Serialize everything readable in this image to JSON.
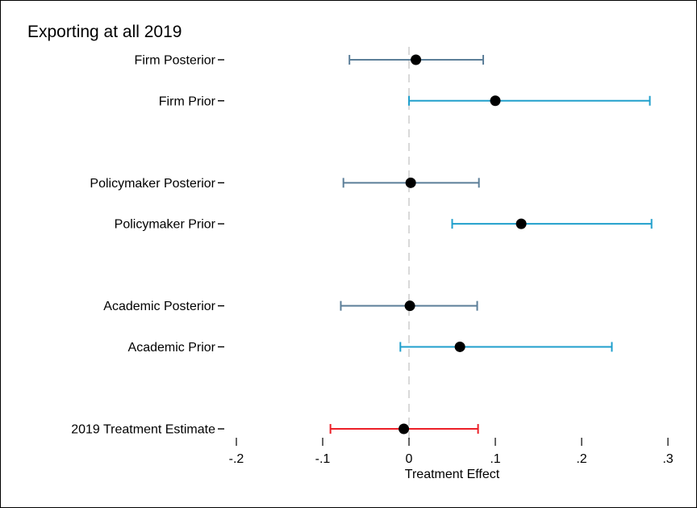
{
  "window": {
    "background": "#ffffff",
    "border_color": "#000000"
  },
  "chart_data": {
    "type": "scatter",
    "subtype": "forest-plot-with-error-bars",
    "title": "Exporting at all 2019",
    "xlabel": "Treatment Effect",
    "xlim": [
      -0.22,
      0.32
    ],
    "grid": false,
    "legend": "none",
    "zero_reference_line": {
      "x": 0,
      "style": "dashed",
      "color": "#d9d9d9"
    },
    "x_ticks": [
      {
        "value": -0.2,
        "label": "-.2"
      },
      {
        "value": -0.1,
        "label": "-.1"
      },
      {
        "value": 0,
        "label": "0"
      },
      {
        "value": 0.1,
        "label": ".1"
      },
      {
        "value": 0.2,
        "label": ".2"
      },
      {
        "value": 0.3,
        "label": ".3"
      }
    ],
    "rows": [
      {
        "label": "Firm Posterior",
        "slot": 1,
        "estimate": 0.008,
        "ci_low": -0.069,
        "ci_high": 0.086,
        "group": "posterior"
      },
      {
        "label": "Firm Prior",
        "slot": 2,
        "estimate": 0.1,
        "ci_low": 0.0,
        "ci_high": 0.279,
        "group": "prior"
      },
      {
        "label": "Policymaker Posterior",
        "slot": 4,
        "estimate": 0.002,
        "ci_low": -0.076,
        "ci_high": 0.081,
        "group": "posterior"
      },
      {
        "label": "Policymaker Prior",
        "slot": 5,
        "estimate": 0.13,
        "ci_low": 0.05,
        "ci_high": 0.281,
        "group": "prior"
      },
      {
        "label": "Academic Posterior",
        "slot": 7,
        "estimate": 0.001,
        "ci_low": -0.079,
        "ci_high": 0.079,
        "group": "posterior"
      },
      {
        "label": "Academic Prior",
        "slot": 8,
        "estimate": 0.059,
        "ci_low": -0.01,
        "ci_high": 0.235,
        "group": "prior"
      },
      {
        "label": "2019 Treatment Estimate",
        "slot": 10,
        "estimate": -0.006,
        "ci_low": -0.091,
        "ci_high": 0.08,
        "group": "treatment"
      }
    ],
    "colors": {
      "posterior": "#5c7f99",
      "prior": "#209fcc",
      "treatment": "#ec2028",
      "marker": "#000000",
      "zero_line": "#d9d9d9",
      "axis": "#000000"
    }
  }
}
